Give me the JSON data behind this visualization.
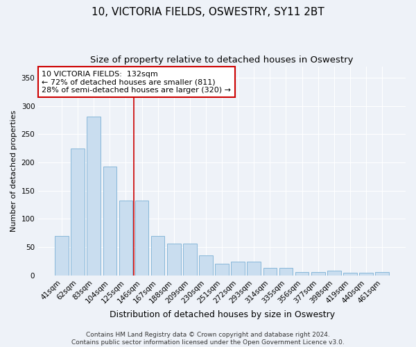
{
  "title": "10, VICTORIA FIELDS, OSWESTRY, SY11 2BT",
  "subtitle": "Size of property relative to detached houses in Oswestry",
  "xlabel": "Distribution of detached houses by size in Oswestry",
  "ylabel": "Number of detached properties",
  "categories": [
    "41sqm",
    "62sqm",
    "83sqm",
    "104sqm",
    "125sqm",
    "146sqm",
    "167sqm",
    "188sqm",
    "209sqm",
    "230sqm",
    "251sqm",
    "272sqm",
    "293sqm",
    "314sqm",
    "335sqm",
    "356sqm",
    "377sqm",
    "398sqm",
    "419sqm",
    "440sqm",
    "461sqm"
  ],
  "values": [
    70,
    224,
    281,
    193,
    133,
    133,
    70,
    57,
    57,
    35,
    21,
    25,
    25,
    14,
    14,
    6,
    6,
    9,
    5,
    5,
    6
  ],
  "bar_color": "#c9ddef",
  "bar_edge_color": "#7aafd4",
  "annotation_box_text": [
    "10 VICTORIA FIELDS:  132sqm",
    "← 72% of detached houses are smaller (811)",
    "28% of semi-detached houses are larger (320) →"
  ],
  "vline_color": "#cc0000",
  "vline_x": 4.5,
  "ylim": [
    0,
    370
  ],
  "yticks": [
    0,
    50,
    100,
    150,
    200,
    250,
    300,
    350
  ],
  "footer_text": "Contains HM Land Registry data © Crown copyright and database right 2024.\nContains public sector information licensed under the Open Government Licence v3.0.",
  "bg_color": "#eef2f8",
  "plot_bg_color": "#eef2f8",
  "grid_color": "#ffffff",
  "title_fontsize": 11,
  "subtitle_fontsize": 9.5,
  "xlabel_fontsize": 9,
  "ylabel_fontsize": 8,
  "tick_fontsize": 7.5,
  "annotation_fontsize": 8,
  "footer_fontsize": 6.5
}
